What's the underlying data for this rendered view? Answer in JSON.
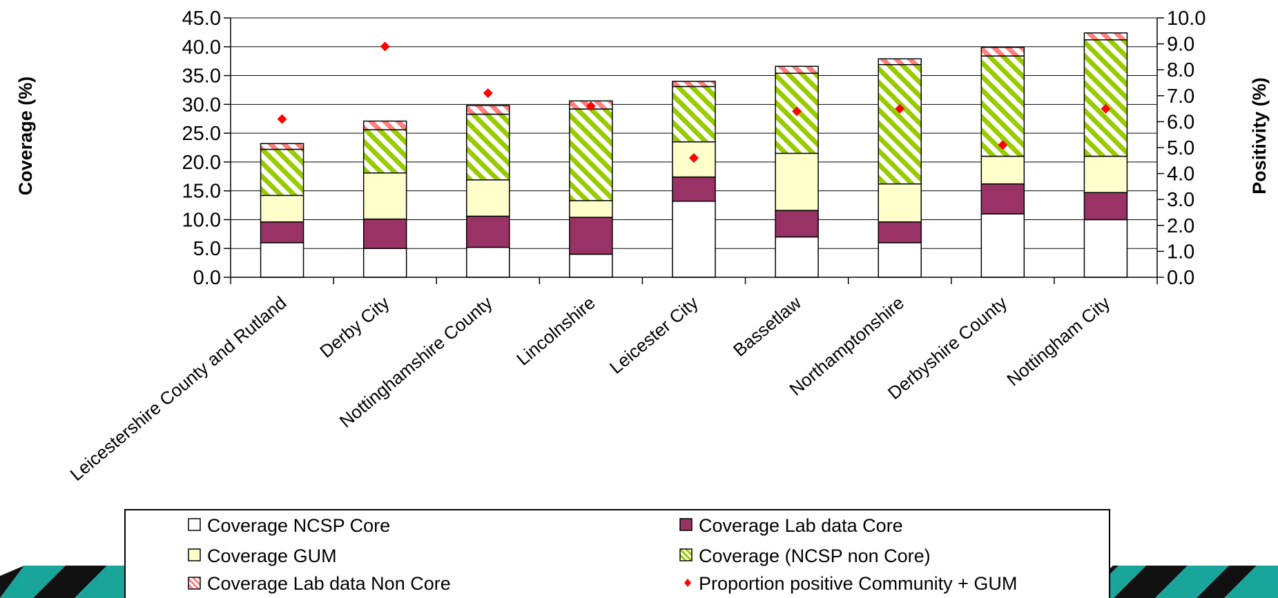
{
  "chart_data": {
    "type": "bar",
    "stacked": true,
    "categories": [
      "Leicestershire County and Rutland",
      "Derby City",
      "Nottinghamshire County",
      "Lincolnshire",
      "Leicester City",
      "Bassetlaw",
      "Northamptonshire",
      "Derbyshire County",
      "Nottingham City"
    ],
    "category_labels": [
      "Leicestershire County and Rutland",
      "Derby City",
      "Nottinghamshire County",
      "Lincolnshire",
      "Leicester City",
      "Bassetlaw",
      "Northamptonshire",
      "Derbyshire County",
      "Nottingham City"
    ],
    "ylabel": "Coverage (%)",
    "y2label": "Positivity (%)",
    "ylim": [
      0,
      45
    ],
    "y2lim": [
      0,
      10
    ],
    "yticks": [
      "0.0",
      "5.0",
      "10.0",
      "15.0",
      "20.0",
      "25.0",
      "30.0",
      "35.0",
      "40.0",
      "45.0"
    ],
    "y2ticks": [
      "0.0",
      "1.0",
      "2.0",
      "3.0",
      "4.0",
      "5.0",
      "6.0",
      "7.0",
      "8.0",
      "9.0",
      "10.0"
    ],
    "grid": true,
    "legend_position": "bottom",
    "series": [
      {
        "name": "Coverage NCSP Core",
        "fill": "#ffffff",
        "pattern": "none",
        "values": [
          6.0,
          5.0,
          5.2,
          4.0,
          13.2,
          7.0,
          6.0,
          11.0,
          10.0
        ]
      },
      {
        "name": "Coverage Lab data Core",
        "fill": "#993366",
        "pattern": "none",
        "values": [
          3.6,
          5.1,
          5.4,
          6.4,
          4.2,
          4.6,
          3.6,
          5.2,
          4.7
        ]
      },
      {
        "name": "Coverage GUM",
        "fill": "#ffffcc",
        "pattern": "none",
        "values": [
          4.6,
          8.0,
          6.3,
          2.9,
          6.1,
          9.9,
          6.6,
          4.8,
          6.3
        ]
      },
      {
        "name": "Coverage (NCSP non Core)",
        "fill": "#99cc00",
        "pattern": "diagonal",
        "values": [
          8.0,
          7.5,
          11.4,
          15.9,
          9.6,
          13.9,
          20.7,
          17.4,
          20.2
        ]
      },
      {
        "name": "Coverage Lab data Non Core",
        "fill": "#ff8080",
        "pattern": "diagonal",
        "values": [
          1.0,
          1.5,
          1.5,
          1.4,
          0.9,
          1.2,
          1.0,
          1.5,
          1.2
        ]
      }
    ],
    "line_series": [
      {
        "name": "Proportion positive Community + GUM",
        "axis": "secondary",
        "marker": "diamond",
        "color": "#ff0000",
        "values": [
          6.1,
          8.9,
          7.1,
          6.6,
          4.6,
          6.4,
          6.5,
          5.1,
          6.5
        ]
      }
    ],
    "legend_order": [
      "Coverage NCSP Core",
      "Coverage Lab data Core",
      "Coverage GUM",
      "Coverage (NCSP non Core)",
      "Coverage Lab data Non Core",
      "Proportion positive Community + GUM"
    ]
  },
  "colors": {
    "banner_teal": "#1aa59a",
    "banner_black": "#111111",
    "marker_red": "#ff0000",
    "lab_core": "#993366",
    "gum": "#ffffcc",
    "ncsp_non_core": "#99cc00",
    "lab_non_core": "#ff8080"
  }
}
